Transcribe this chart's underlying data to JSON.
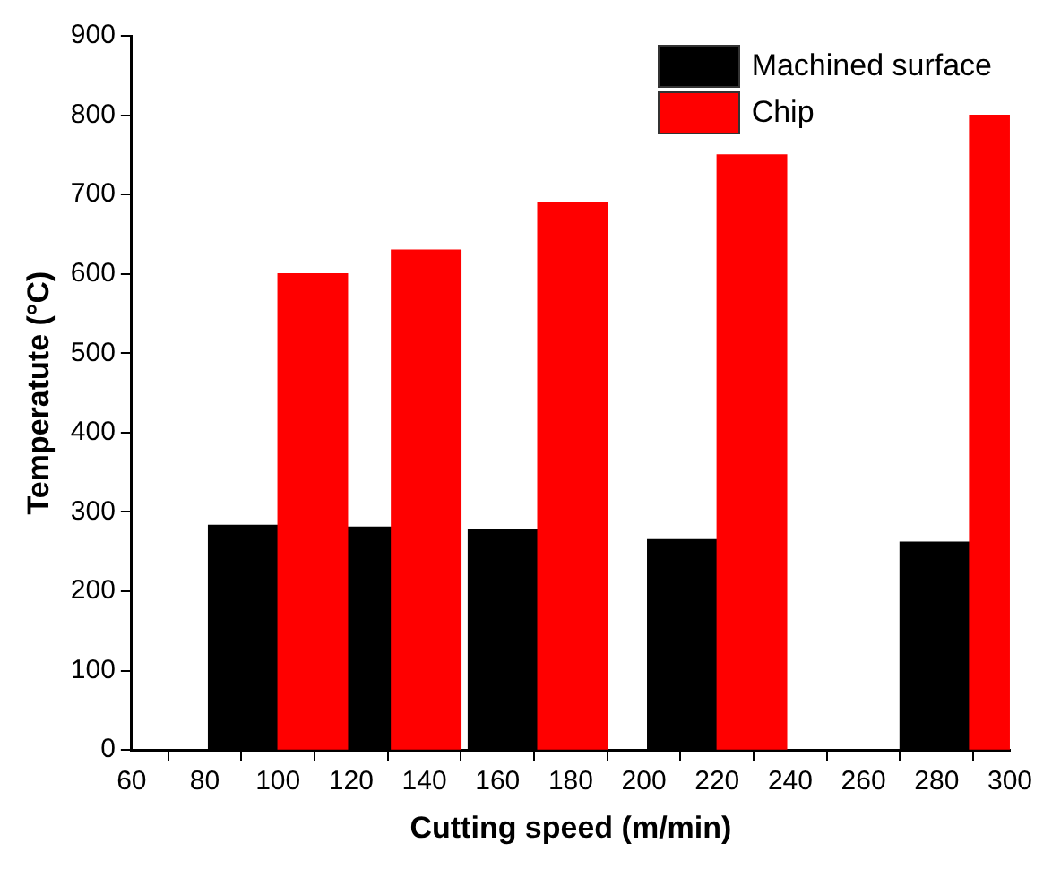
{
  "chart_data": {
    "type": "bar",
    "xlabel": "Cutting speed (m/min)",
    "ylabel": "Temperatute (°C)",
    "xlim": [
      60,
      300
    ],
    "xticks": [
      60,
      80,
      100,
      120,
      140,
      160,
      180,
      200,
      220,
      240,
      260,
      280,
      300
    ],
    "ylim": [
      0,
      900
    ],
    "yticks": [
      0,
      100,
      200,
      300,
      400,
      500,
      600,
      700,
      800,
      900
    ],
    "series": [
      {
        "name": "Machined surface",
        "color": "#000000",
        "x": [
          90.5,
          121.5,
          161.5,
          210.5,
          279.5
        ],
        "values": [
          283,
          281,
          278,
          265,
          262
        ]
      },
      {
        "name": "Chip",
        "color": "#ff0000",
        "x": [
          109.5,
          140.5,
          180.5,
          229.5,
          298.5
        ],
        "values": [
          600,
          630,
          690,
          750,
          800
        ]
      }
    ],
    "grid": false,
    "legend": "top right"
  }
}
